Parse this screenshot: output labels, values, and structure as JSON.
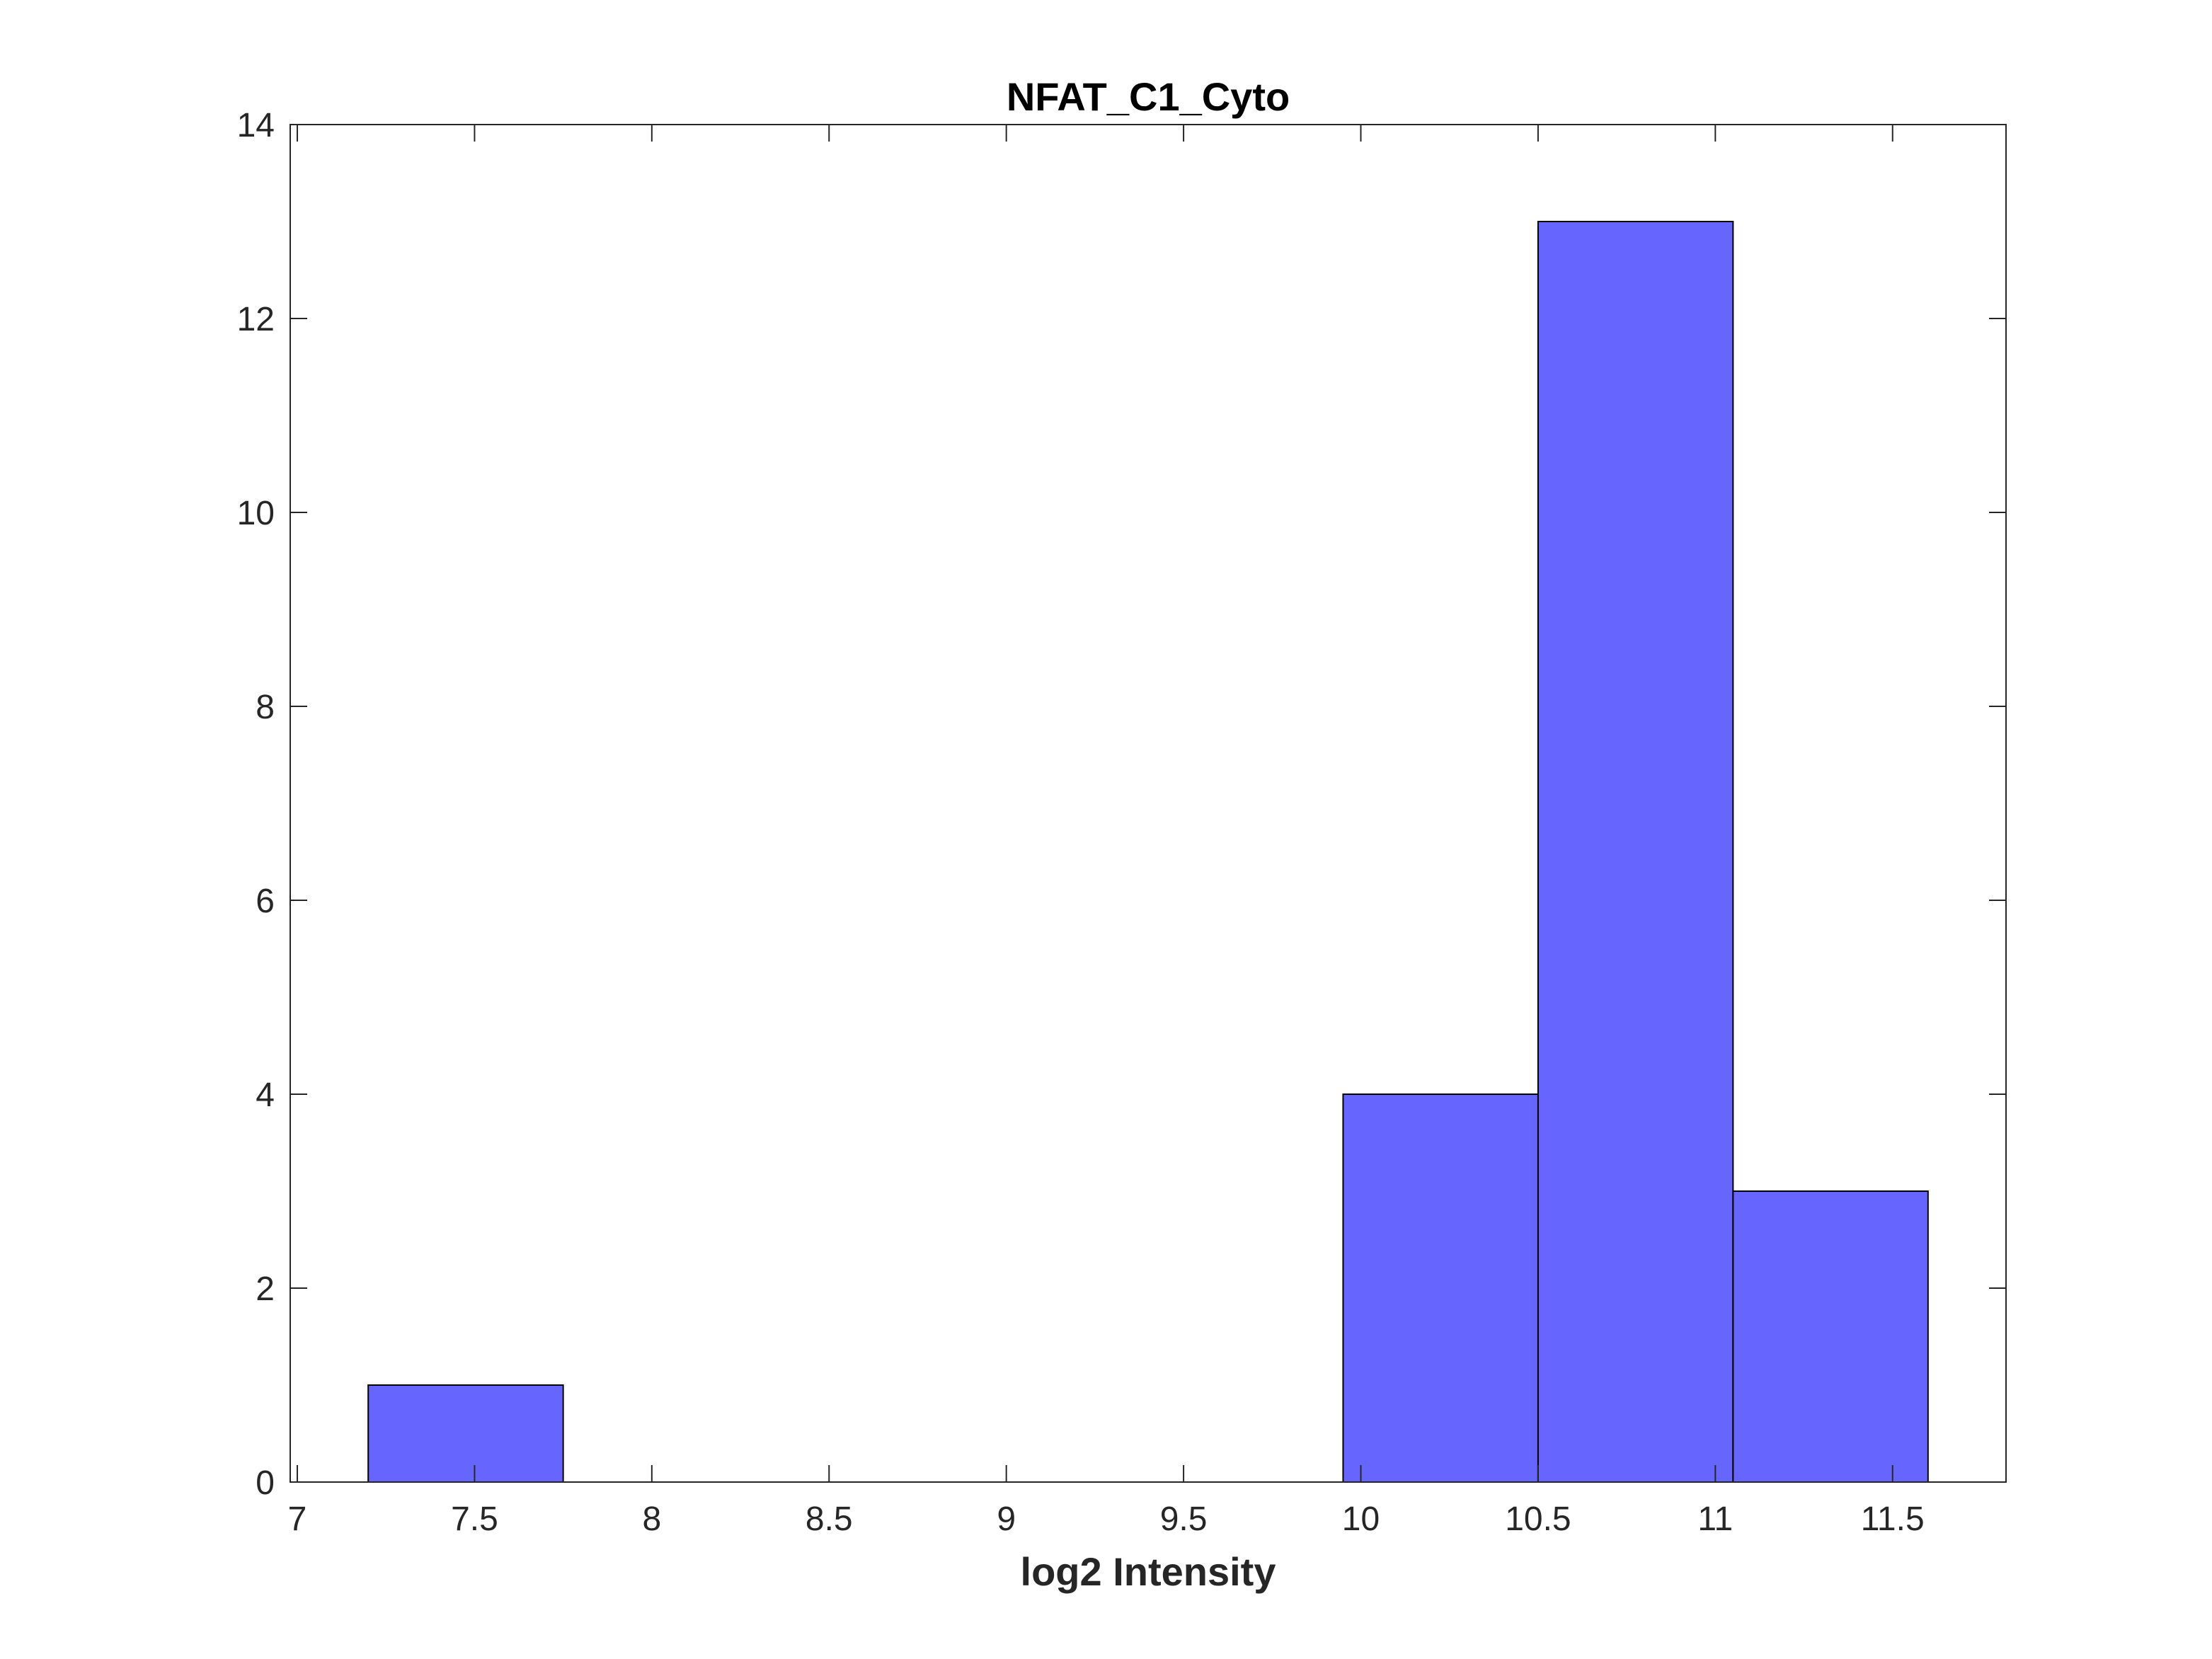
{
  "chart_data": {
    "type": "bar",
    "title": "NFAT_C1_Cyto",
    "xlabel": "log2 Intensity",
    "ylabel": "",
    "xlim": [
      6.98,
      11.82
    ],
    "ylim": [
      0,
      14
    ],
    "x_ticks": [
      "7",
      "7.5",
      "8",
      "8.5",
      "9",
      "9.5",
      "10",
      "10.5",
      "11",
      "11.5"
    ],
    "x_tick_values": [
      7,
      7.5,
      8,
      8.5,
      9,
      9.5,
      10,
      10.5,
      11,
      11.5
    ],
    "y_ticks": [
      "0",
      "2",
      "4",
      "6",
      "8",
      "10",
      "12",
      "14"
    ],
    "y_tick_values": [
      0,
      2,
      4,
      6,
      8,
      10,
      12,
      14
    ],
    "bins": [
      {
        "x0": 7.2,
        "x1": 7.75,
        "value": 1
      },
      {
        "x0": 9.95,
        "x1": 10.5,
        "value": 4
      },
      {
        "x0": 10.5,
        "x1": 11.05,
        "value": 13
      },
      {
        "x0": 11.05,
        "x1": 11.6,
        "value": 3
      }
    ],
    "bar_color": "#6666ff",
    "edge_color": "#000000",
    "grid": false,
    "legend": "none"
  }
}
